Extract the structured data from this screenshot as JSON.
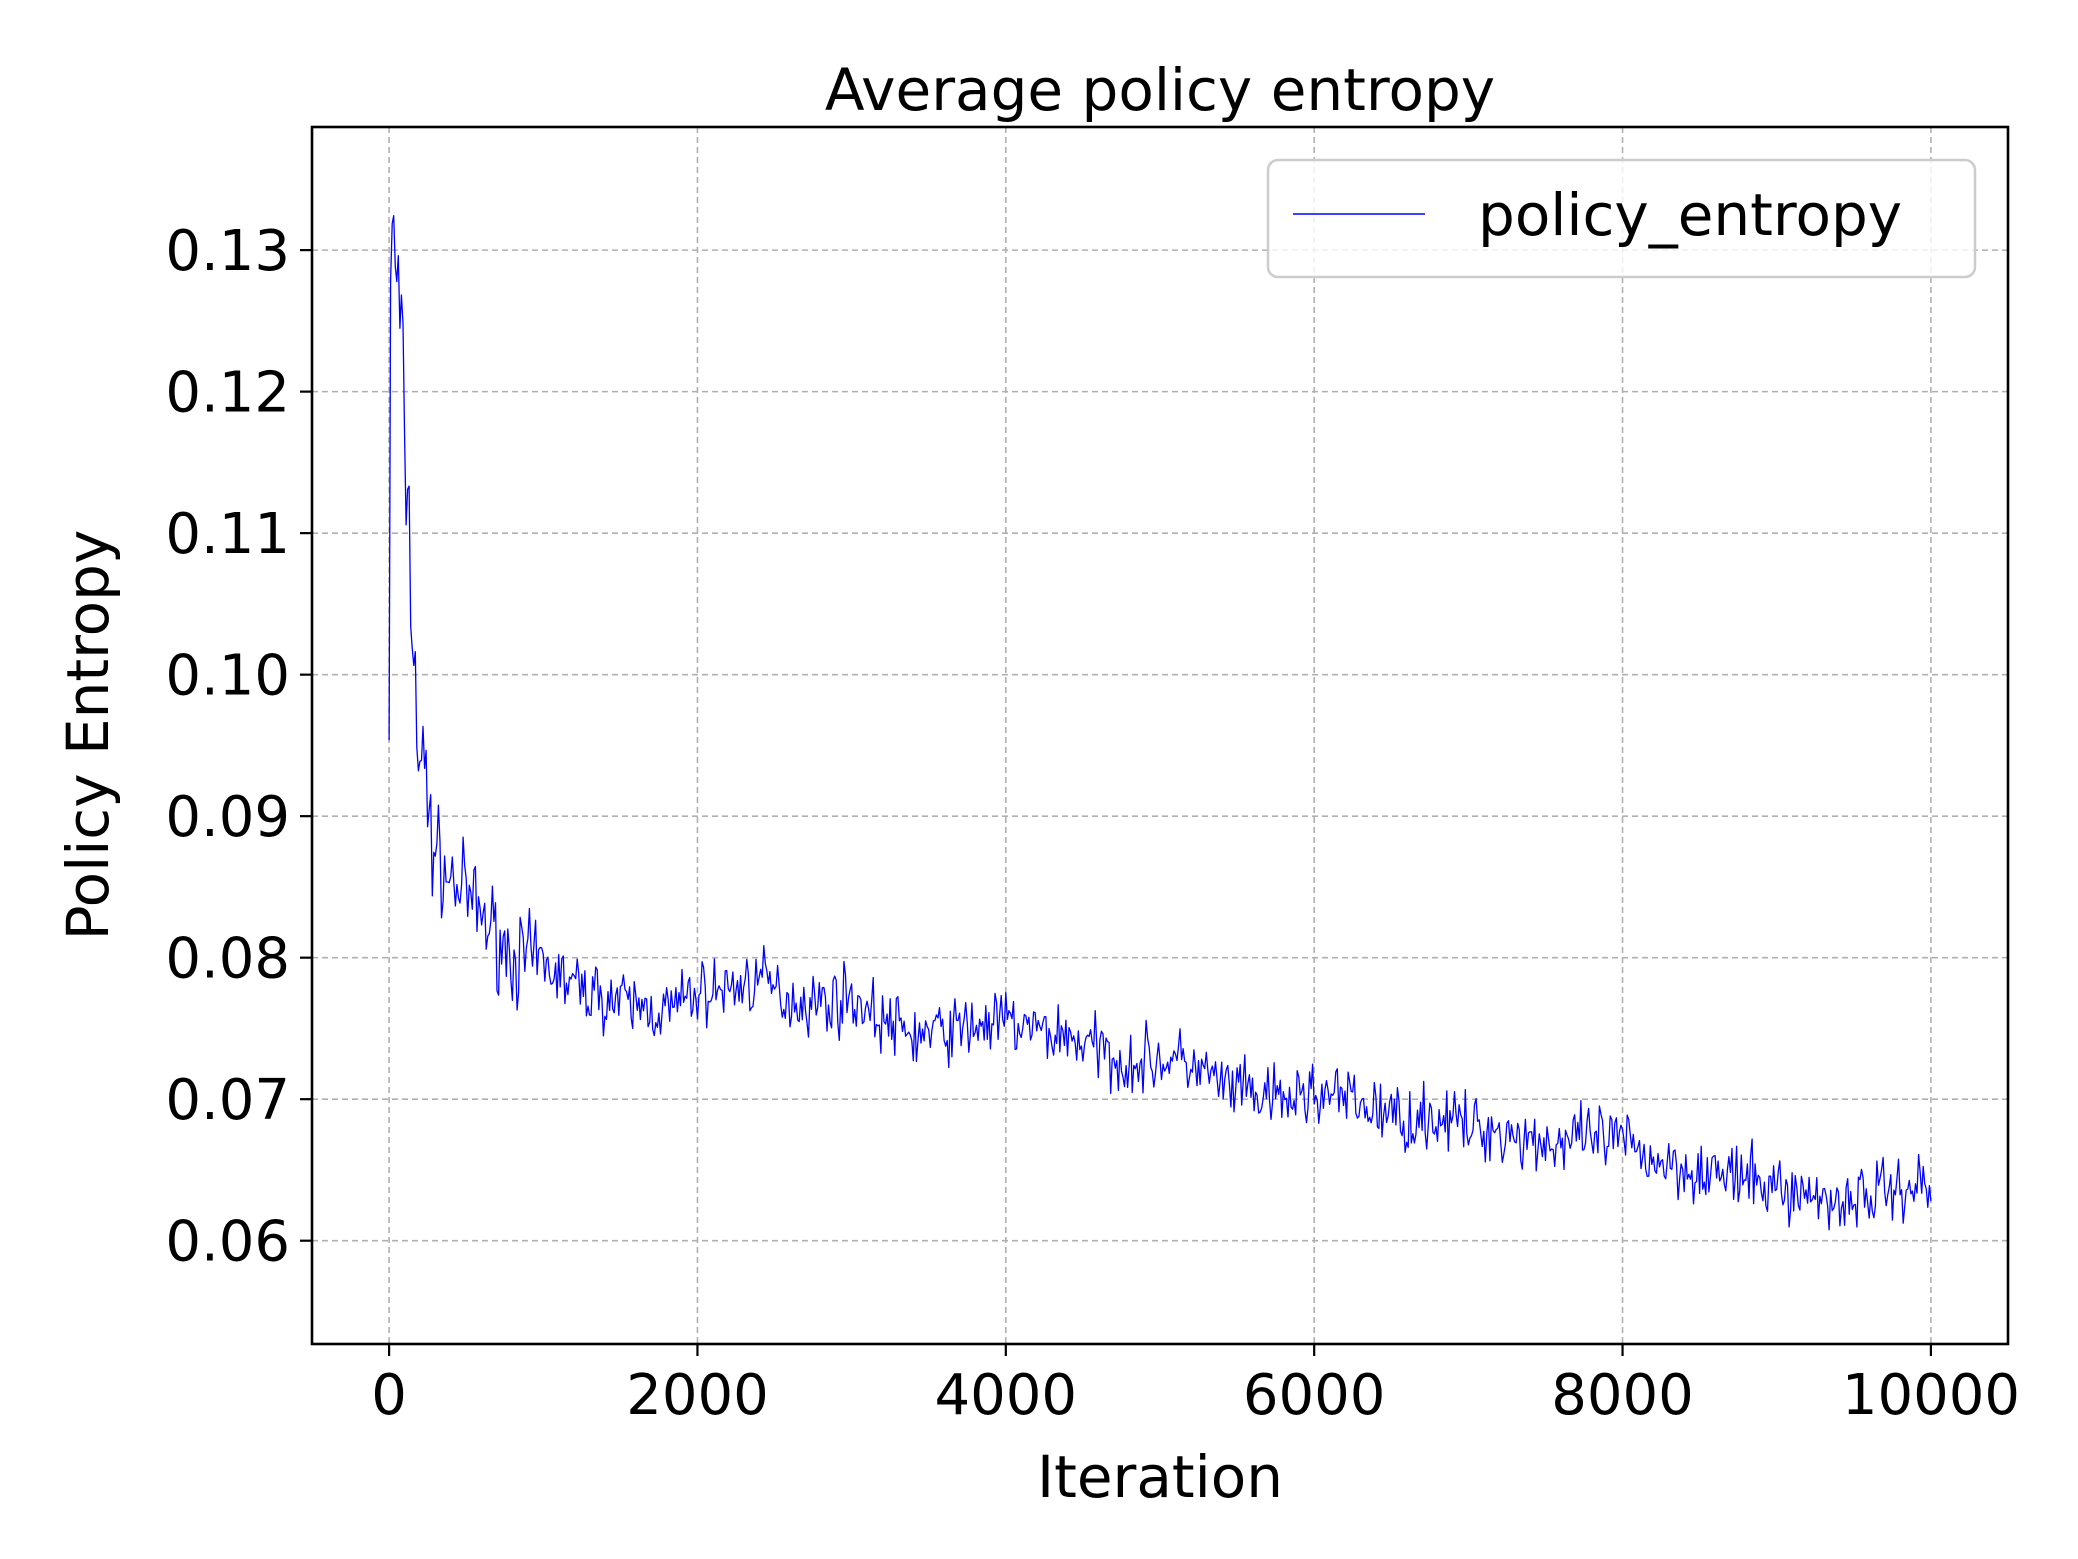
{
  "chart_data": {
    "type": "line",
    "title": "Average policy entropy",
    "xlabel": "Iteration",
    "ylabel": "Policy Entropy",
    "xlim": [
      -500,
      10500
    ],
    "ylim": [
      0.0527,
      0.1387
    ],
    "xticks": [
      0,
      2000,
      4000,
      6000,
      8000,
      10000
    ],
    "xtick_labels": [
      "0",
      "2000",
      "4000",
      "6000",
      "8000",
      "10000"
    ],
    "yticks": [
      0.06,
      0.07,
      0.08,
      0.09,
      0.1,
      0.11,
      0.12,
      0.13
    ],
    "ytick_labels": [
      "0.06",
      "0.07",
      "0.08",
      "0.09",
      "0.10",
      "0.11",
      "0.12",
      "0.13"
    ],
    "grid": true,
    "legend_position": "top-right",
    "series": [
      {
        "name": "policy_entropy",
        "color": "#0000ff",
        "x": [
          0,
          10,
          25,
          50,
          75,
          100,
          125,
          150,
          175,
          200,
          250,
          300,
          350,
          400,
          500,
          600,
          700,
          800,
          1000,
          1200,
          1400,
          1600,
          1800,
          2000,
          2200,
          2400,
          2600,
          2800,
          3000,
          3200,
          3400,
          3600,
          3800,
          4000,
          4200,
          4400,
          4600,
          4800,
          5000,
          5200,
          5400,
          5600,
          5800,
          6000,
          6200,
          6400,
          6600,
          6800,
          7000,
          7200,
          7400,
          7600,
          7800,
          8000,
          8200,
          8400,
          8600,
          8800,
          9000,
          9200,
          9400,
          9600,
          9800,
          10000
        ],
        "y": [
          0.097,
          0.128,
          0.131,
          0.128,
          0.124,
          0.117,
          0.111,
          0.104,
          0.098,
          0.094,
          0.091,
          0.088,
          0.086,
          0.0855,
          0.0845,
          0.083,
          0.0815,
          0.08,
          0.0795,
          0.078,
          0.0772,
          0.0765,
          0.0762,
          0.0775,
          0.0778,
          0.0785,
          0.077,
          0.0768,
          0.0772,
          0.0755,
          0.0745,
          0.0748,
          0.0752,
          0.0755,
          0.0748,
          0.0745,
          0.0735,
          0.0725,
          0.0728,
          0.0725,
          0.071,
          0.0702,
          0.0698,
          0.0705,
          0.07,
          0.0692,
          0.0685,
          0.0688,
          0.068,
          0.0678,
          0.0672,
          0.0668,
          0.0672,
          0.067,
          0.0658,
          0.0652,
          0.0648,
          0.0642,
          0.0638,
          0.0632,
          0.0628,
          0.0633,
          0.0638,
          0.064
        ]
      }
    ]
  }
}
